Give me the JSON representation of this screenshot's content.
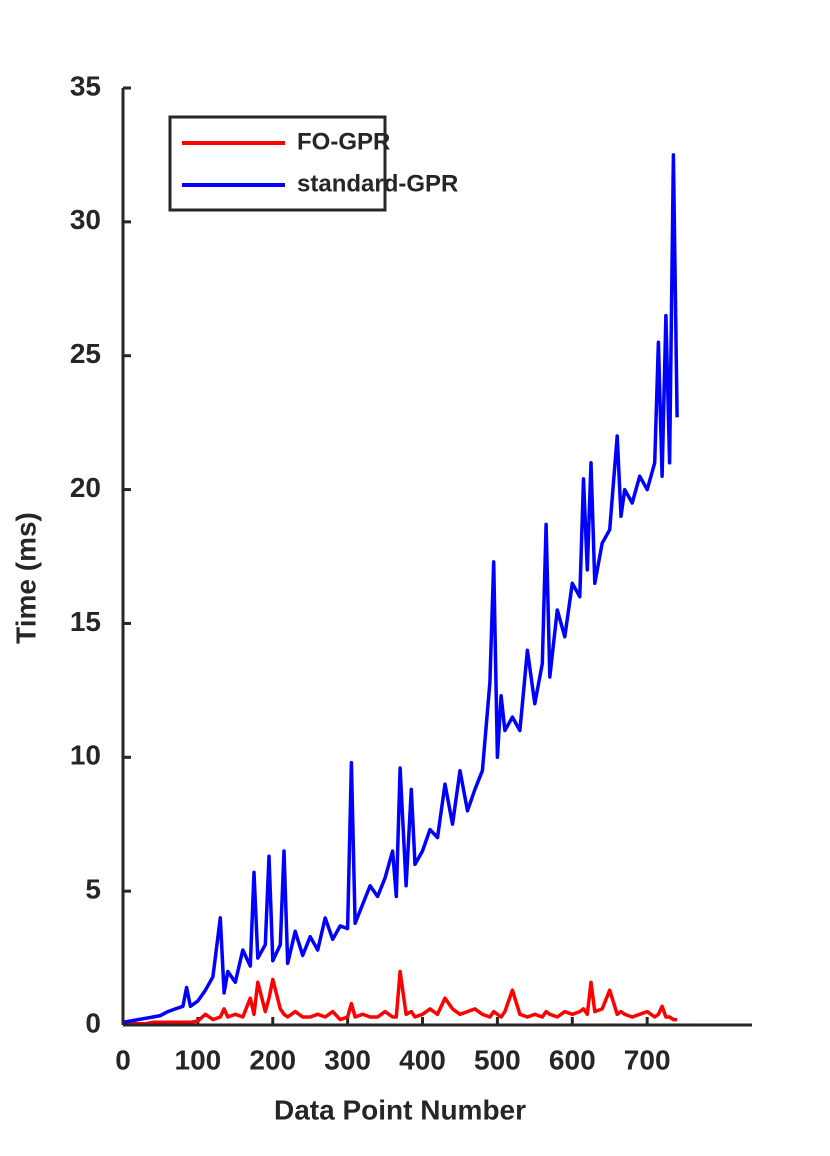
{
  "chart_data": {
    "type": "line",
    "xlabel": "Data Point Number",
    "ylabel": "Time (ms)",
    "x": [
      0,
      10,
      20,
      30,
      40,
      50,
      60,
      70,
      80,
      85,
      90,
      100,
      110,
      120,
      130,
      135,
      140,
      150,
      160,
      170,
      175,
      180,
      190,
      195,
      200,
      210,
      215,
      220,
      230,
      240,
      250,
      260,
      270,
      280,
      290,
      300,
      305,
      310,
      320,
      330,
      340,
      350,
      360,
      365,
      370,
      378,
      385,
      390,
      400,
      410,
      420,
      430,
      440,
      450,
      460,
      470,
      480,
      490,
      495,
      500,
      505,
      510,
      520,
      530,
      540,
      550,
      560,
      565,
      570,
      580,
      590,
      600,
      610,
      615,
      620,
      625,
      630,
      640,
      650,
      660,
      665,
      670,
      680,
      690,
      700,
      710,
      715,
      720,
      725,
      730,
      735,
      740
    ],
    "series": [
      {
        "name": "FO-GPR",
        "color": "#ff0000",
        "values": [
          0,
          0.05,
          0.05,
          0.05,
          0.1,
          0.1,
          0.1,
          0.1,
          0.1,
          0.1,
          0.1,
          0.15,
          0.4,
          0.2,
          0.3,
          0.6,
          0.3,
          0.4,
          0.3,
          1.0,
          0.4,
          1.6,
          0.5,
          1.0,
          1.7,
          0.6,
          0.4,
          0.3,
          0.5,
          0.3,
          0.3,
          0.4,
          0.3,
          0.5,
          0.2,
          0.3,
          0.8,
          0.3,
          0.4,
          0.3,
          0.3,
          0.5,
          0.3,
          0.3,
          2.0,
          0.4,
          0.5,
          0.3,
          0.4,
          0.6,
          0.4,
          1.0,
          0.6,
          0.4,
          0.5,
          0.6,
          0.4,
          0.3,
          0.5,
          0.4,
          0.3,
          0.5,
          1.3,
          0.4,
          0.3,
          0.4,
          0.3,
          0.5,
          0.4,
          0.3,
          0.5,
          0.4,
          0.5,
          0.6,
          0.4,
          1.6,
          0.5,
          0.6,
          1.3,
          0.4,
          0.5,
          0.4,
          0.3,
          0.4,
          0.5,
          0.3,
          0.4,
          0.7,
          0.3,
          0.3,
          0.2,
          0.2
        ]
      },
      {
        "name": "standard-GPR",
        "color": "#0000ff",
        "values": [
          0.1,
          0.15,
          0.2,
          0.25,
          0.3,
          0.35,
          0.5,
          0.6,
          0.7,
          1.4,
          0.7,
          0.9,
          1.3,
          1.8,
          4.0,
          1.2,
          2.0,
          1.6,
          2.8,
          2.2,
          5.7,
          2.5,
          3.0,
          6.3,
          2.4,
          3.0,
          6.5,
          2.3,
          3.5,
          2.6,
          3.3,
          2.8,
          4.0,
          3.2,
          3.7,
          3.6,
          9.8,
          3.8,
          4.5,
          5.2,
          4.8,
          5.5,
          6.5,
          4.8,
          9.6,
          5.2,
          8.8,
          6.0,
          6.5,
          7.3,
          7.0,
          9.0,
          7.5,
          9.5,
          8.0,
          8.8,
          9.5,
          12.8,
          17.3,
          10.0,
          12.3,
          11.0,
          11.5,
          11.0,
          14.0,
          12.0,
          13.5,
          18.7,
          13.0,
          15.5,
          14.5,
          16.5,
          16.0,
          20.4,
          17.0,
          21.0,
          16.5,
          18.0,
          18.5,
          22.0,
          19.0,
          20.0,
          19.5,
          20.5,
          20.0,
          21.0,
          25.5,
          20.5,
          26.5,
          21.0,
          32.5,
          22.7
        ]
      }
    ],
    "xlim": [
      0,
      840
    ],
    "xticks": [
      0,
      100,
      200,
      300,
      400,
      500,
      600,
      700
    ],
    "ylim": [
      0,
      35
    ],
    "yticks": [
      0,
      5,
      10,
      15,
      20,
      25,
      30,
      35
    ],
    "legend": "upper left",
    "grid": false
  }
}
